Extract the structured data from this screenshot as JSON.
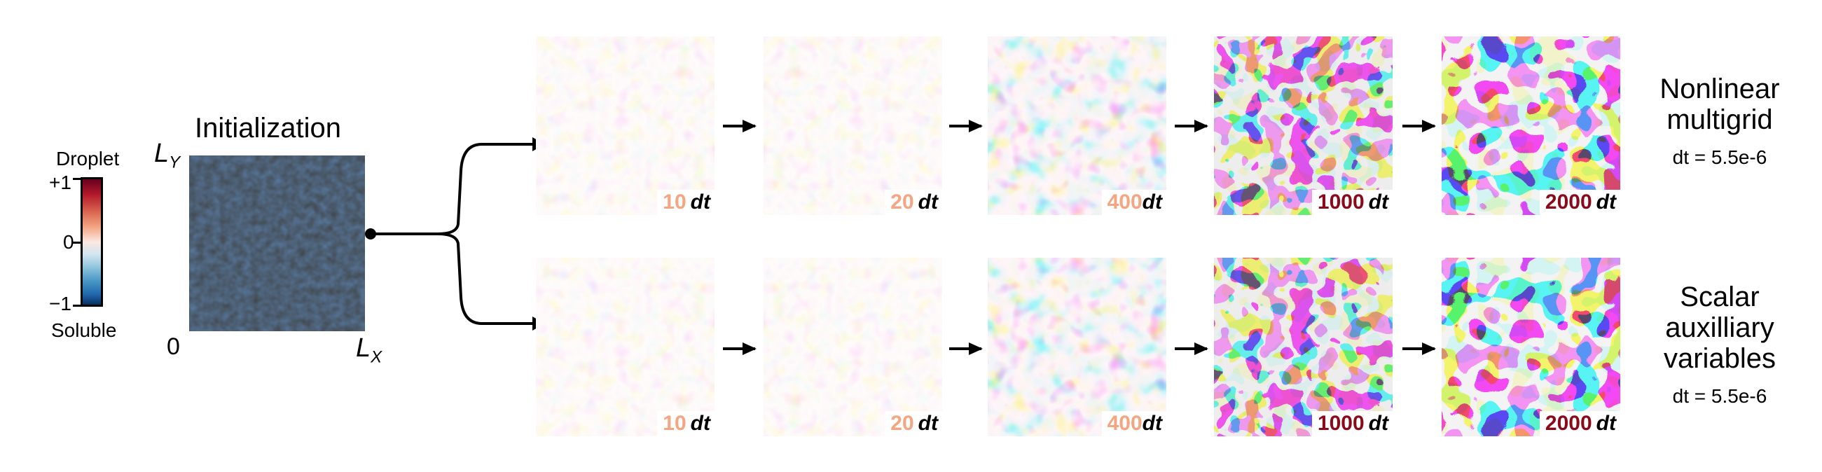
{
  "colorbar": {
    "top_label": "Droplet",
    "bottom_label": "Soluble",
    "tick_max": "+1",
    "tick_mid": "0",
    "tick_min": "−1",
    "colors": [
      "#67001f",
      "#b2182b",
      "#f4a582",
      "#f7f7f7",
      "#92c5de",
      "#2166ac",
      "#053061"
    ]
  },
  "initialization": {
    "title": "Initialization",
    "y_axis_label": "L",
    "y_axis_sub": "Y",
    "x_axis_label": "L",
    "x_axis_sub": "X",
    "origin_label": "0"
  },
  "rows": [
    {
      "method_lines": [
        "Nonlinear",
        "multigrid"
      ],
      "timestep": "dt = 5.5e-6",
      "frames": [
        {
          "steps": "10",
          "unit": "dt",
          "color": "#f4a582"
        },
        {
          "steps": "20",
          "unit": "dt",
          "color": "#f4a582"
        },
        {
          "steps": "400",
          "unit": "dt",
          "color": "#f4a582"
        },
        {
          "steps": "1000",
          "unit": "dt",
          "color": "#8b0a1a"
        },
        {
          "steps": "2000",
          "unit": "dt",
          "color": "#8b0a1a"
        }
      ]
    },
    {
      "method_lines": [
        "Scalar",
        "auxilliary",
        "variables"
      ],
      "timestep": "dt = 5.5e-6",
      "frames": [
        {
          "steps": "10",
          "unit": "dt",
          "color": "#f4a582"
        },
        {
          "steps": "20",
          "unit": "dt",
          "color": "#f4a582"
        },
        {
          "steps": "400",
          "unit": "dt",
          "color": "#f4a582"
        },
        {
          "steps": "1000",
          "unit": "dt",
          "color": "#8b0a1a"
        },
        {
          "steps": "2000",
          "unit": "dt",
          "color": "#8b0a1a"
        }
      ]
    }
  ]
}
